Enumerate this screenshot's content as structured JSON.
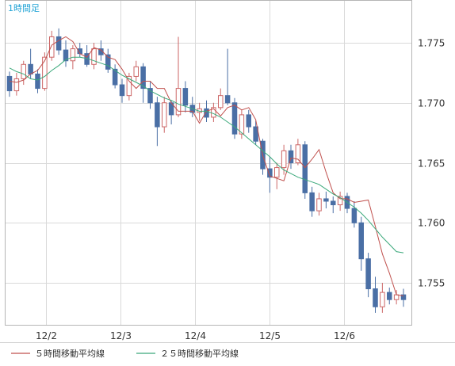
{
  "chart_data": {
    "type": "candlestick",
    "timeframe_label": "1時間足",
    "x_tick_labels": [
      "12/2",
      "12/3",
      "12/4",
      "12/5",
      "12/6"
    ],
    "ylim": [
      1.7515,
      1.7785
    ],
    "y_ticks": [
      "1.775",
      "1.770",
      "1.765",
      "1.760",
      "1.755"
    ],
    "grid": true,
    "legend_position": "bottom-left",
    "colors": {
      "up_candle": "#cc6666",
      "down_candle": "#4a6fa5",
      "ma5": "#c0504d",
      "ma25": "#3aa87a",
      "grid": "#d9d9d9",
      "title": "#1fa3d5"
    },
    "series": [
      {
        "name": "５時間移動平均線",
        "values": [
          1.7718,
          1.7717,
          1.7719,
          1.7724,
          1.7727,
          1.7735,
          1.7748,
          1.7752,
          1.7755,
          1.7751,
          1.7741,
          1.7738,
          1.7746,
          1.7744,
          1.7738,
          1.7736,
          1.7728,
          1.7718,
          1.7712,
          1.7718,
          1.7718,
          1.7712,
          1.7712,
          1.77,
          1.7693,
          1.7693,
          1.7693,
          1.7683,
          1.7693,
          1.7695,
          1.7689,
          1.7696,
          1.7698,
          1.7694,
          1.7696,
          1.7686,
          1.7656,
          1.7639,
          1.7637,
          1.7635,
          1.7654,
          1.7653,
          1.7646,
          1.7653,
          1.7661,
          1.7642,
          1.7625,
          1.762,
          1.762,
          1.7617,
          1.7618,
          1.7619,
          1.7597,
          1.7574,
          1.7558,
          1.754,
          1.7539
        ]
      },
      {
        "name": "２５時間移動平均線",
        "values": [
          1.7729,
          1.7726,
          1.7724,
          1.772,
          1.7719,
          1.7722,
          1.7727,
          1.7731,
          1.7736,
          1.7738,
          1.7738,
          1.7737,
          1.7735,
          1.7733,
          1.7731,
          1.7727,
          1.7723,
          1.772,
          1.7717,
          1.7714,
          1.771,
          1.7707,
          1.7704,
          1.7702,
          1.7699,
          1.7697,
          1.7695,
          1.7693,
          1.7693,
          1.7691,
          1.7688,
          1.7684,
          1.768,
          1.7675,
          1.767,
          1.7665,
          1.766,
          1.7655,
          1.7649,
          1.7644,
          1.7641,
          1.7638,
          1.7636,
          1.7634,
          1.7632,
          1.7628,
          1.7624,
          1.7621,
          1.7617,
          1.7613,
          1.7608,
          1.7602,
          1.7595,
          1.7588,
          1.7582,
          1.7576,
          1.7575
        ]
      }
    ],
    "candles": [
      [
        1.7722,
        1.7726,
        1.7705,
        1.771
      ],
      [
        1.771,
        1.7725,
        1.7706,
        1.772
      ],
      [
        1.772,
        1.7735,
        1.7715,
        1.7732
      ],
      [
        1.7732,
        1.7745,
        1.772,
        1.7724
      ],
      [
        1.7724,
        1.7728,
        1.7708,
        1.7712
      ],
      [
        1.7712,
        1.7742,
        1.771,
        1.7738
      ],
      [
        1.7738,
        1.776,
        1.7735,
        1.7755
      ],
      [
        1.7755,
        1.7762,
        1.774,
        1.7744
      ],
      [
        1.7744,
        1.7752,
        1.773,
        1.7735
      ],
      [
        1.7735,
        1.7748,
        1.7728,
        1.7745
      ],
      [
        1.7745,
        1.775,
        1.7738,
        1.7741
      ],
      [
        1.7741,
        1.7748,
        1.773,
        1.7732
      ],
      [
        1.7732,
        1.775,
        1.7728,
        1.7745
      ],
      [
        1.7745,
        1.7752,
        1.7735,
        1.774
      ],
      [
        1.774,
        1.7745,
        1.7725,
        1.7728
      ],
      [
        1.7728,
        1.7732,
        1.7712,
        1.7715
      ],
      [
        1.7715,
        1.772,
        1.77,
        1.7706
      ],
      [
        1.7706,
        1.7725,
        1.7702,
        1.7722
      ],
      [
        1.7722,
        1.7735,
        1.7718,
        1.773
      ],
      [
        1.773,
        1.7733,
        1.77,
        1.7712
      ],
      [
        1.7712,
        1.7718,
        1.7695,
        1.77
      ],
      [
        1.77,
        1.7705,
        1.7664,
        1.768
      ],
      [
        1.768,
        1.7705,
        1.7675,
        1.77
      ],
      [
        1.77,
        1.7702,
        1.7682,
        1.769
      ],
      [
        1.769,
        1.7755,
        1.7688,
        1.7712
      ],
      [
        1.7712,
        1.7718,
        1.7692,
        1.7698
      ],
      [
        1.7698,
        1.7705,
        1.7688,
        1.7692
      ],
      [
        1.7692,
        1.77,
        1.7685,
        1.7695
      ],
      [
        1.7695,
        1.7702,
        1.7684,
        1.7688
      ],
      [
        1.7688,
        1.77,
        1.7684,
        1.7696
      ],
      [
        1.7696,
        1.7712,
        1.7694,
        1.7706
      ],
      [
        1.7706,
        1.7745,
        1.7698,
        1.77
      ],
      [
        1.77,
        1.7704,
        1.767,
        1.7674
      ],
      [
        1.7674,
        1.7694,
        1.767,
        1.769
      ],
      [
        1.769,
        1.7694,
        1.7675,
        1.768
      ],
      [
        1.768,
        1.7685,
        1.7665,
        1.7668
      ],
      [
        1.7668,
        1.767,
        1.764,
        1.7645
      ],
      [
        1.7645,
        1.7655,
        1.7625,
        1.7638
      ],
      [
        1.7638,
        1.765,
        1.7628,
        1.7646
      ],
      [
        1.7646,
        1.7665,
        1.764,
        1.766
      ],
      [
        1.766,
        1.7665,
        1.7645,
        1.765
      ],
      [
        1.765,
        1.767,
        1.7648,
        1.7665
      ],
      [
        1.7665,
        1.7668,
        1.762,
        1.7625
      ],
      [
        1.7625,
        1.763,
        1.7605,
        1.761
      ],
      [
        1.761,
        1.7625,
        1.7606,
        1.762
      ],
      [
        1.762,
        1.7626,
        1.7612,
        1.7618
      ],
      [
        1.7618,
        1.7622,
        1.7608,
        1.7615
      ],
      [
        1.7615,
        1.7626,
        1.761,
        1.7622
      ],
      [
        1.7622,
        1.7625,
        1.7608,
        1.7612
      ],
      [
        1.7612,
        1.7618,
        1.7596,
        1.76
      ],
      [
        1.76,
        1.7605,
        1.756,
        1.757
      ],
      [
        1.757,
        1.7575,
        1.7538,
        1.7545
      ],
      [
        1.7545,
        1.7555,
        1.7525,
        1.753
      ],
      [
        1.753,
        1.755,
        1.7525,
        1.7542
      ],
      [
        1.7542,
        1.7546,
        1.7532,
        1.7536
      ],
      [
        1.7536,
        1.7544,
        1.7532,
        1.754
      ],
      [
        1.754,
        1.7545,
        1.753,
        1.7536
      ]
    ]
  }
}
